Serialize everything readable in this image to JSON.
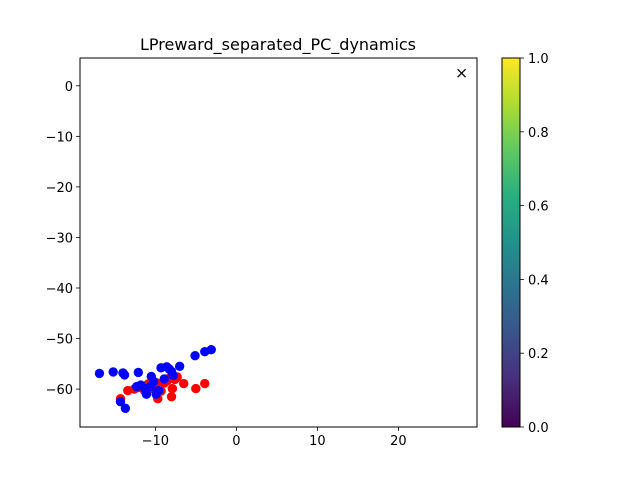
{
  "chart_data": {
    "type": "scatter",
    "title": "LPreward_separated_PC_dynamics",
    "xlabel": "",
    "ylabel": "",
    "xlim": [
      -19.3,
      29.7
    ],
    "ylim": [
      -67.5,
      5.5
    ],
    "xticks": [
      -10,
      0,
      10,
      20
    ],
    "yticks": [
      0,
      -10,
      -20,
      -30,
      -40,
      -50,
      -60
    ],
    "xtick_labels": [
      "−10",
      "0",
      "10",
      "20"
    ],
    "ytick_labels": [
      "0",
      "−10",
      "−20",
      "−30",
      "−40",
      "−50",
      "−60"
    ],
    "grid": false,
    "series": [
      {
        "color": "#ff0000",
        "marker": "circle",
        "points": [
          [
            -14.3,
            -61.9
          ],
          [
            -13.4,
            -60.3
          ],
          [
            -12.6,
            -60.0
          ],
          [
            -12.1,
            -59.7
          ],
          [
            -11.3,
            -60.4
          ],
          [
            -10.9,
            -59.0
          ],
          [
            -10.3,
            -59.9
          ],
          [
            -9.8,
            -58.8
          ],
          [
            -9.7,
            -61.9
          ],
          [
            -9.3,
            -60.4
          ],
          [
            -8.9,
            -58.8
          ],
          [
            -8.5,
            -58.3
          ],
          [
            -8.0,
            -61.5
          ],
          [
            -7.9,
            -59.9
          ],
          [
            -7.6,
            -58.1
          ],
          [
            -7.3,
            -57.6
          ],
          [
            -6.5,
            -58.9
          ],
          [
            -5.0,
            -59.9
          ],
          [
            -3.9,
            -58.9
          ],
          [
            -8.3,
            -57.9
          ]
        ]
      },
      {
        "color": "#0000ff",
        "marker": "circle",
        "points": [
          [
            -16.9,
            -56.9
          ],
          [
            -15.2,
            -56.6
          ],
          [
            -14.3,
            -62.5
          ],
          [
            -14.0,
            -56.8
          ],
          [
            -13.8,
            -57.2
          ],
          [
            -13.7,
            -63.8
          ],
          [
            -12.1,
            -56.7
          ],
          [
            -11.8,
            -59.2
          ],
          [
            -11.3,
            -59.9
          ],
          [
            -11.1,
            -61.0
          ],
          [
            -10.5,
            -57.5
          ],
          [
            -10.2,
            -58.5
          ],
          [
            -9.9,
            -61.0
          ],
          [
            -9.6,
            -60.3
          ],
          [
            -9.3,
            -55.8
          ],
          [
            -8.9,
            -58.0
          ],
          [
            -8.6,
            -55.6
          ],
          [
            -8.3,
            -56.0
          ],
          [
            -8.0,
            -56.5
          ],
          [
            -7.8,
            -57.3
          ],
          [
            -7.0,
            -55.5
          ],
          [
            -5.1,
            -53.4
          ],
          [
            -3.9,
            -52.6
          ],
          [
            -3.1,
            -52.2
          ],
          [
            -10.6,
            -59.5
          ],
          [
            -12.3,
            -59.5
          ]
        ]
      },
      {
        "color": "#000000",
        "marker": "x",
        "points": [
          [
            27.8,
            2.5
          ]
        ]
      }
    ],
    "colorbar": {
      "range": [
        0.0,
        1.0
      ],
      "ticks": [
        0.0,
        0.2,
        0.4,
        0.6,
        0.8,
        1.0
      ],
      "tick_labels": [
        "0.0",
        "0.2",
        "0.4",
        "0.6",
        "0.8",
        "1.0"
      ],
      "colormap": "viridis"
    }
  }
}
